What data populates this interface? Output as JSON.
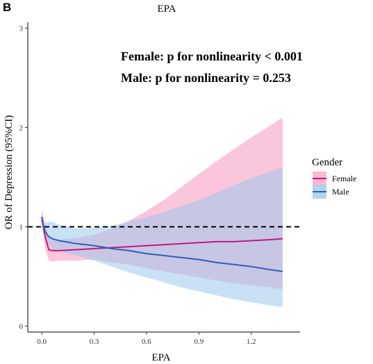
{
  "panel_label": "B",
  "chart_data": {
    "type": "line",
    "title": "EPA",
    "xlabel": "EPA",
    "ylabel": "OR of Depression (95%CI)",
    "xlim": [
      -0.08,
      1.48
    ],
    "ylim": [
      -0.06,
      3.06
    ],
    "x_ticks": [
      0.0,
      0.3,
      0.6,
      0.9,
      1.2
    ],
    "x_tick_labels": [
      "0.0",
      "0.3",
      "0.6",
      "0.9",
      "1.2"
    ],
    "y_ticks": [
      0,
      1,
      2,
      3
    ],
    "y_tick_labels": [
      "0",
      "1",
      "2",
      "3"
    ],
    "reference_line": {
      "y": 1,
      "style": "dashed",
      "color": "#000000"
    },
    "grid": false,
    "legend": {
      "title": "Gender",
      "position": "right",
      "entries": [
        "Female",
        "Male"
      ]
    },
    "annotations": [
      "Female: p for nonlinearity < 0.001",
      "Male: p for nonlinearity =  0.253"
    ],
    "series": [
      {
        "name": "Female",
        "line_color": "#c2187e",
        "band_color": "#f7a8c8",
        "x": [
          0.0,
          0.02,
          0.04,
          0.06,
          0.1,
          0.2,
          0.3,
          0.4,
          0.5,
          0.6,
          0.7,
          0.8,
          0.9,
          1.0,
          1.1,
          1.2,
          1.3,
          1.38
        ],
        "y": [
          1.1,
          0.9,
          0.77,
          0.76,
          0.76,
          0.77,
          0.78,
          0.79,
          0.8,
          0.81,
          0.82,
          0.83,
          0.84,
          0.85,
          0.85,
          0.86,
          0.87,
          0.88
        ],
        "lower": [
          1.02,
          0.78,
          0.66,
          0.65,
          0.66,
          0.66,
          0.67,
          0.64,
          0.62,
          0.58,
          0.55,
          0.52,
          0.49,
          0.46,
          0.43,
          0.41,
          0.39,
          0.37
        ],
        "upper": [
          1.18,
          1.02,
          0.89,
          0.88,
          0.87,
          0.89,
          0.92,
          0.98,
          1.06,
          1.16,
          1.27,
          1.4,
          1.53,
          1.66,
          1.78,
          1.9,
          2.01,
          2.1
        ]
      },
      {
        "name": "Male",
        "line_color": "#2e5fb5",
        "band_color": "#9cc8ec",
        "x": [
          0.0,
          0.02,
          0.04,
          0.06,
          0.1,
          0.2,
          0.3,
          0.4,
          0.5,
          0.6,
          0.7,
          0.8,
          0.9,
          1.0,
          1.1,
          1.2,
          1.3,
          1.38
        ],
        "y": [
          1.07,
          0.95,
          0.9,
          0.88,
          0.86,
          0.83,
          0.81,
          0.78,
          0.76,
          0.73,
          0.71,
          0.69,
          0.67,
          0.64,
          0.62,
          0.6,
          0.57,
          0.55
        ],
        "lower": [
          1.0,
          0.88,
          0.82,
          0.78,
          0.75,
          0.71,
          0.66,
          0.6,
          0.54,
          0.49,
          0.44,
          0.39,
          0.35,
          0.31,
          0.27,
          0.24,
          0.21,
          0.19
        ],
        "upper": [
          1.1,
          1.04,
          1.05,
          1.05,
          1.02,
          0.98,
          0.99,
          1.01,
          1.05,
          1.1,
          1.15,
          1.21,
          1.27,
          1.34,
          1.42,
          1.49,
          1.55,
          1.6
        ]
      }
    ]
  }
}
